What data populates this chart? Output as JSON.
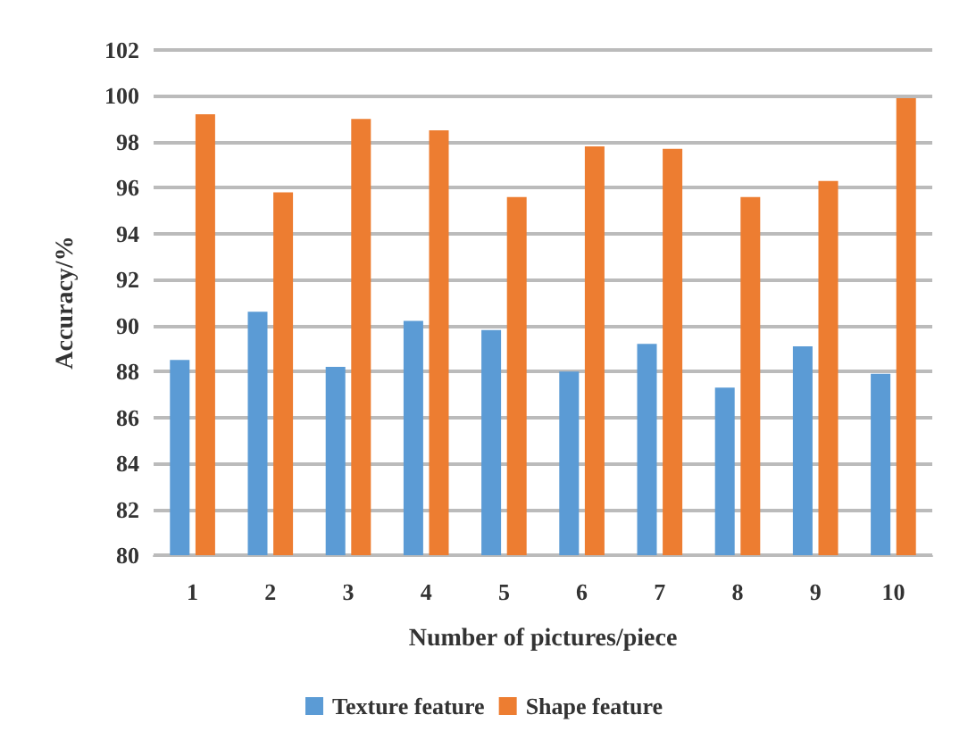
{
  "chart_data": {
    "type": "bar",
    "xlabel": "Number of pictures/piece",
    "ylabel": "Accuracy/%",
    "categories": [
      "1",
      "2",
      "3",
      "4",
      "5",
      "6",
      "7",
      "8",
      "9",
      "10"
    ],
    "series": [
      {
        "name": "Texture feature",
        "color": "#5b9bd5",
        "values": [
          88.5,
          90.6,
          88.2,
          90.2,
          89.8,
          88.0,
          89.2,
          87.3,
          89.1,
          87.9
        ]
      },
      {
        "name": "Shape feature",
        "color": "#ed7d31",
        "values": [
          99.2,
          95.8,
          99.0,
          98.5,
          95.6,
          97.8,
          97.7,
          95.6,
          96.3,
          99.9
        ]
      }
    ],
    "ylim": [
      80,
      102
    ],
    "yticks": [
      80,
      82,
      84,
      86,
      88,
      90,
      92,
      94,
      96,
      98,
      100,
      102
    ],
    "grid": "y",
    "legend": "bottom"
  }
}
